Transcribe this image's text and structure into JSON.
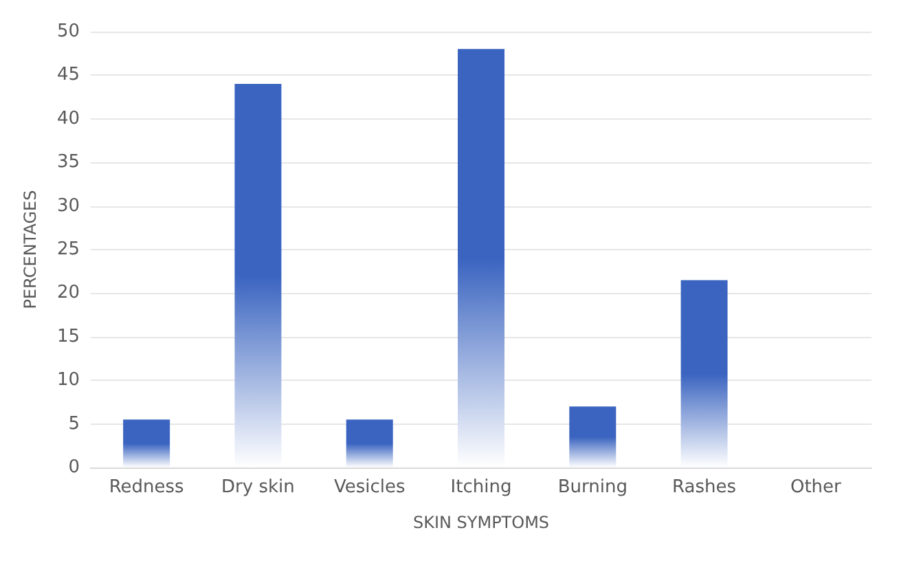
{
  "chart_data": {
    "type": "bar",
    "xlabel": "SKIN SYMPTOMS",
    "ylabel": "PERCENTAGES",
    "categories": [
      "Redness",
      "Dry skin",
      "Vesicles",
      "Itching",
      "Burning",
      "Rashes",
      "Other"
    ],
    "values": [
      5.5,
      44,
      5.5,
      48,
      7,
      21.5,
      0
    ],
    "color": "#3a64c0",
    "ylim": [
      0,
      50
    ],
    "yticks": [
      0,
      5,
      10,
      15,
      20,
      25,
      30,
      35,
      40,
      45,
      50
    ],
    "grid": "y"
  }
}
